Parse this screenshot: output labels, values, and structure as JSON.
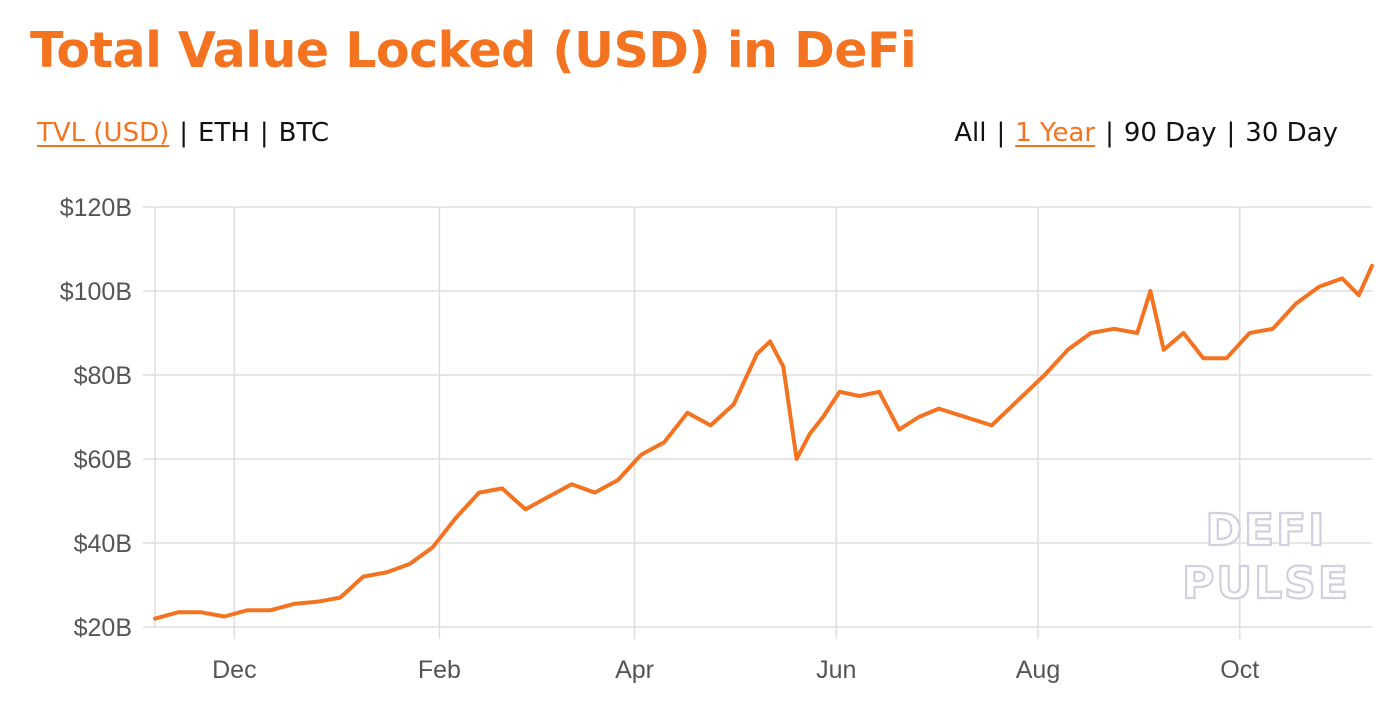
{
  "title": "Total Value Locked (USD) in DeFi",
  "metric_toggle": {
    "options": [
      "TVL (USD)",
      "ETH",
      "BTC"
    ],
    "active": "TVL (USD)"
  },
  "range_toggle": {
    "options": [
      "All",
      "1 Year",
      "90 Day",
      "30 Day"
    ],
    "active": "1 Year"
  },
  "watermark": {
    "line1": "DEFI",
    "line2": "PULSE"
  },
  "colors": {
    "accent": "#f47321",
    "grid": "#dddddd",
    "axis_text": "#555555"
  },
  "chart_data": {
    "type": "line",
    "title": "",
    "xlabel": "",
    "ylabel": "",
    "x_ticks": [
      {
        "label": "Dec",
        "date": "2020-12-01"
      },
      {
        "label": "Feb",
        "date": "2021-02-01"
      },
      {
        "label": "Apr",
        "date": "2021-04-01"
      },
      {
        "label": "Jun",
        "date": "2021-06-01"
      },
      {
        "label": "Aug",
        "date": "2021-08-01"
      },
      {
        "label": "Oct",
        "date": "2021-10-01"
      }
    ],
    "xlim": [
      "2020-11-07",
      "2021-11-10"
    ],
    "y_ticks": [
      {
        "label": "$20B",
        "value": 20
      },
      {
        "label": "$40B",
        "value": 40
      },
      {
        "label": "$60B",
        "value": 60
      },
      {
        "label": "$80B",
        "value": 80
      },
      {
        "label": "$100B",
        "value": 100
      },
      {
        "label": "$120B",
        "value": 120
      }
    ],
    "ylim": [
      20,
      120
    ],
    "grid": true,
    "series": [
      {
        "color": "#f47321",
        "x": [
          "2020-11-07",
          "2020-11-14",
          "2020-11-21",
          "2020-11-28",
          "2020-12-05",
          "2020-12-12",
          "2020-12-19",
          "2020-12-26",
          "2021-01-02",
          "2021-01-09",
          "2021-01-16",
          "2021-01-23",
          "2021-01-30",
          "2021-02-06",
          "2021-02-13",
          "2021-02-20",
          "2021-02-27",
          "2021-03-06",
          "2021-03-13",
          "2021-03-20",
          "2021-03-27",
          "2021-04-03",
          "2021-04-10",
          "2021-04-17",
          "2021-04-24",
          "2021-05-01",
          "2021-05-08",
          "2021-05-12",
          "2021-05-16",
          "2021-05-20",
          "2021-05-24",
          "2021-05-28",
          "2021-06-02",
          "2021-06-08",
          "2021-06-14",
          "2021-06-20",
          "2021-06-26",
          "2021-07-02",
          "2021-07-10",
          "2021-07-18",
          "2021-07-26",
          "2021-08-03",
          "2021-08-10",
          "2021-08-17",
          "2021-08-24",
          "2021-08-31",
          "2021-09-04",
          "2021-09-08",
          "2021-09-14",
          "2021-09-20",
          "2021-09-27",
          "2021-10-04",
          "2021-10-11",
          "2021-10-18",
          "2021-10-25",
          "2021-11-01",
          "2021-11-06",
          "2021-11-10"
        ],
        "y": [
          22,
          23.5,
          23.5,
          22.5,
          24,
          24,
          25.5,
          26,
          27,
          32,
          33,
          35,
          39,
          46,
          52,
          53,
          48,
          51,
          54,
          52,
          55,
          61,
          64,
          71,
          68,
          73,
          85,
          88,
          82,
          60,
          66,
          70,
          76,
          75,
          76,
          67,
          70,
          72,
          70,
          68,
          74,
          80,
          86,
          90,
          91,
          90,
          100,
          86,
          90,
          84,
          84,
          90,
          91,
          97,
          101,
          103,
          99,
          106
        ]
      }
    ]
  }
}
